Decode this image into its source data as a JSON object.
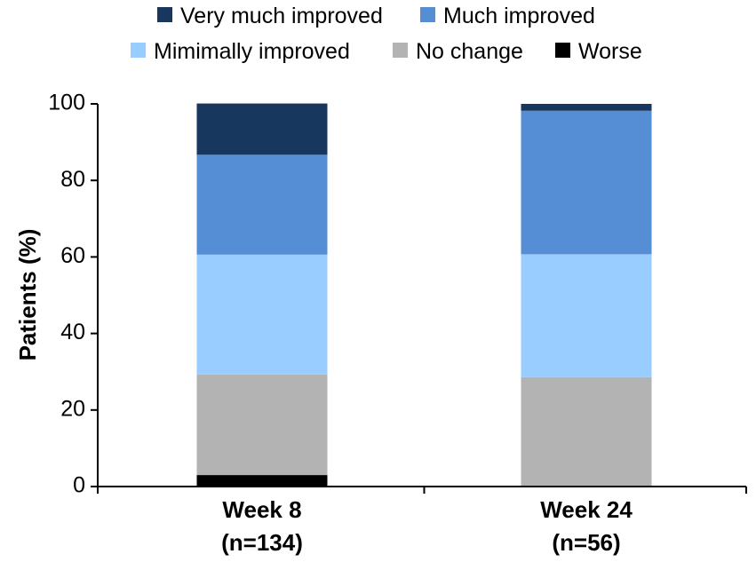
{
  "chart_data": {
    "type": "bar",
    "stacked": true,
    "title": "",
    "xlabel": "",
    "ylabel": "Patients (%)",
    "ylim": [
      0,
      100
    ],
    "yticks": [
      0,
      20,
      40,
      60,
      80,
      100
    ],
    "legend_position": "top",
    "categories": [
      {
        "line1": "Week 8",
        "line2": "(n=134)"
      },
      {
        "line1": "Week 24",
        "line2": "(n=56)"
      }
    ],
    "series": [
      {
        "name": "Worse",
        "color": "#000000",
        "values": [
          3,
          0
        ]
      },
      {
        "name": "No change",
        "color": "#b3b3b3",
        "values": [
          26.3,
          28.6
        ]
      },
      {
        "name": "Mimimally improved",
        "color": "#99ccff",
        "values": [
          31.3,
          32.1
        ]
      },
      {
        "name": "Much improved",
        "color": "#558ed5",
        "values": [
          26.1,
          37.5
        ]
      },
      {
        "name": "Very much improved",
        "color": "#17375e",
        "values": [
          13.4,
          1.8
        ]
      }
    ],
    "legend_order": [
      "Very much improved",
      "Much improved",
      "Mimimally improved",
      "No change",
      "Worse"
    ]
  }
}
